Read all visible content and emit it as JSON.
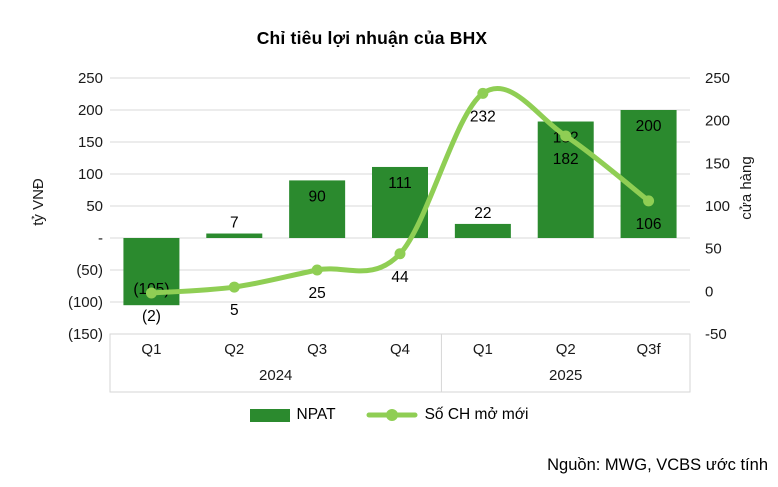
{
  "title": "Chỉ tiêu lợi nhuận của BHX",
  "source": "Nguồn: MWG, VCBS ước tính",
  "chart_data": {
    "type": "combo",
    "categories": [
      "Q1",
      "Q2",
      "Q3",
      "Q4",
      "Q1",
      "Q2",
      "Q3f"
    ],
    "group_labels": [
      {
        "label": "2024",
        "span": 4
      },
      {
        "label": "2025",
        "span": 3
      }
    ],
    "series": [
      {
        "name": "NPAT",
        "type": "bar",
        "axis": "left",
        "values": [
          -105,
          7,
          90,
          111,
          22,
          182,
          200
        ],
        "labels": [
          "(105)",
          "7",
          "90",
          "111",
          "22",
          "182",
          "200"
        ]
      },
      {
        "name": "Số CH mở mới",
        "type": "line",
        "axis": "right",
        "values": [
          -2,
          5,
          25,
          44,
          232,
          182,
          106
        ],
        "labels": [
          "(2)",
          "5",
          "25",
          "44",
          "232",
          "182",
          "106"
        ]
      }
    ],
    "left_axis": {
      "label": "tỷ VNĐ",
      "min": -150,
      "max": 250,
      "step": 50,
      "ticks": [
        "250",
        "200",
        "150",
        "100",
        "50",
        "-",
        "(50)",
        "(100)",
        "(150)"
      ]
    },
    "right_axis": {
      "label": "cửa hàng",
      "min": -50,
      "max": 250,
      "step": 50,
      "ticks": [
        "250",
        "200",
        "150",
        "100",
        "50",
        "0",
        "-50"
      ]
    },
    "legend_position": "bottom",
    "grid": true,
    "colors": {
      "bar": "#2b8a2e",
      "line": "#8fce54",
      "marker": "#8fce54",
      "grid": "#d9d9d9",
      "box_border": "#d6d6d6"
    }
  }
}
